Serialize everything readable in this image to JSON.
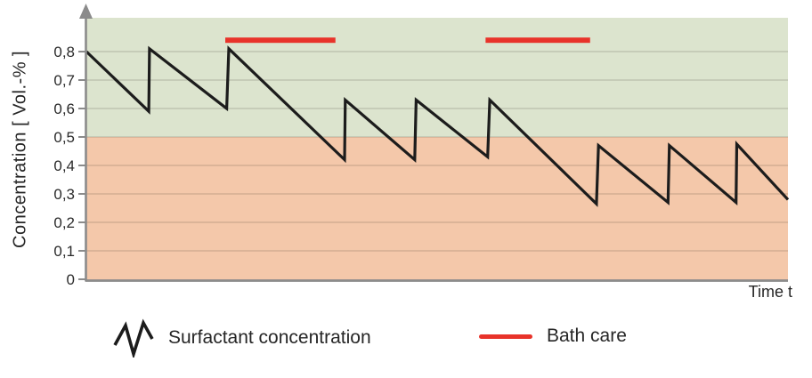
{
  "chart_data": {
    "type": "line",
    "title": "",
    "xlabel": "Time t",
    "ylabel": "Concentration [ Vol.-% ]",
    "ylim": [
      0,
      0.92
    ],
    "xlim": [
      0,
      100
    ],
    "x_axis_ticks_shown": false,
    "grid": true,
    "yticks": [
      0,
      0.1,
      0.2,
      0.3,
      0.4,
      0.5,
      0.6,
      0.7,
      0.8
    ],
    "ytick_labels": [
      "0",
      "0,1",
      "0,2",
      "0,3",
      "0,4",
      "0,5",
      "0,6",
      "0,7",
      "0,8"
    ],
    "threshold": 0.5,
    "colors": {
      "band_above_threshold": "#dce4ce",
      "band_below_threshold": "#f4c8aa",
      "gridline": "rgba(60,55,45,0.18)",
      "axis": "#8b8b8b",
      "series_line": "#1c1c1c",
      "bath_care_red": "#e8332a",
      "text": "#262626"
    },
    "series": [
      {
        "name": "Surfactant concentration",
        "points": [
          [
            0,
            0.8
          ],
          [
            8.9,
            0.59
          ],
          [
            9.0,
            0.81
          ],
          [
            20.0,
            0.6
          ],
          [
            20.3,
            0.81
          ],
          [
            36.8,
            0.42
          ],
          [
            36.9,
            0.63
          ],
          [
            46.8,
            0.42
          ],
          [
            47.0,
            0.63
          ],
          [
            57.2,
            0.43
          ],
          [
            57.5,
            0.63
          ],
          [
            72.7,
            0.265
          ],
          [
            73.0,
            0.47
          ],
          [
            82.9,
            0.27
          ],
          [
            83.1,
            0.47
          ],
          [
            92.6,
            0.27
          ],
          [
            92.7,
            0.475
          ],
          [
            100,
            0.28
          ]
        ]
      }
    ],
    "bath_care_bars": [
      {
        "x1": 19.8,
        "x2": 35.5,
        "y": 0.84
      },
      {
        "x1": 56.9,
        "x2": 71.8,
        "y": 0.84
      }
    ]
  },
  "legend": {
    "items": [
      {
        "label": "Surfactant concentration",
        "marker": "zigzag-line-icon"
      },
      {
        "label": "Bath care",
        "marker": "red-line-icon"
      }
    ]
  }
}
